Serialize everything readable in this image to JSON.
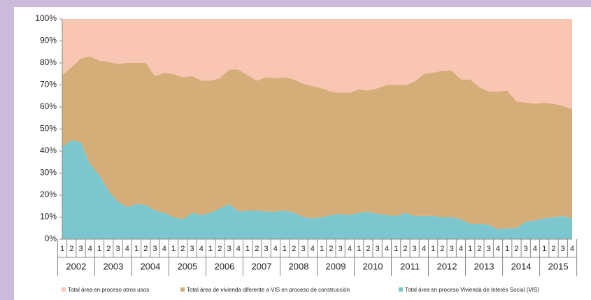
{
  "chart_data": {
    "type": "stacked_area",
    "categories": [
      "1",
      "2",
      "3",
      "4",
      "1",
      "2",
      "3",
      "4",
      "1",
      "2",
      "3",
      "4",
      "1",
      "2",
      "3",
      "4",
      "1",
      "2",
      "3",
      "4",
      "1",
      "2",
      "3",
      "4",
      "1",
      "2",
      "3",
      "4",
      "1",
      "2",
      "3",
      "4",
      "1",
      "2",
      "3",
      "4",
      "1",
      "2",
      "3",
      "4",
      "1",
      "2",
      "3",
      "4",
      "1",
      "2",
      "3",
      "4",
      "1",
      "2",
      "3",
      "4",
      "1",
      "2",
      "3",
      "4"
    ],
    "years": [
      "2002",
      "2003",
      "2004",
      "2005",
      "2006",
      "2007",
      "2008",
      "2009",
      "2010",
      "2011",
      "2012",
      "2013",
      "2014",
      "2015"
    ],
    "series": [
      {
        "name": "Total área en proceso otros usos",
        "color": "#f8c6b3",
        "values": [
          25.5,
          22,
          18,
          17,
          19,
          19.5,
          20.5,
          20,
          20,
          20,
          26,
          24.5,
          25,
          26.5,
          26,
          28,
          28,
          27,
          23,
          23,
          25.5,
          28,
          26.5,
          27,
          26.5,
          27.5,
          29.5,
          30.5,
          31.5,
          33,
          33.5,
          33.5,
          32,
          32.5,
          31.5,
          30,
          30,
          30,
          28.5,
          25,
          24.5,
          23.5,
          23.5,
          27.5,
          27.5,
          31,
          33,
          33,
          32.5,
          37.5,
          38,
          38.5,
          38,
          38.5,
          39.5,
          41
        ]
      },
      {
        "name": "Total área de vivienda diferente a VIS en proceso de construcción",
        "color": "#d5ad78",
        "values": [
          32.5,
          33,
          38,
          49,
          52,
          58.5,
          62.5,
          65.5,
          64,
          64.5,
          61,
          63.5,
          65,
          64.5,
          62,
          61,
          60,
          59,
          61,
          64.5,
          61.5,
          59,
          61,
          60.5,
          60.5,
          60.5,
          60.5,
          60,
          58.5,
          56,
          55,
          55.5,
          56,
          55,
          57,
          59,
          59.5,
          58,
          61,
          64.5,
          65,
          66.5,
          66.5,
          63.5,
          65.5,
          62,
          60.5,
          62.5,
          62.5,
          57.5,
          54,
          53,
          52.5,
          51.5,
          50,
          49.5
        ]
      },
      {
        "name": "Total área en proceso Vivienda de Interés Social (VIS)",
        "color": "#7cc7cd",
        "values": [
          42,
          45,
          44,
          34,
          29,
          22,
          17,
          14.5,
          16,
          15.5,
          13,
          12,
          10,
          9,
          12,
          11,
          12,
          14,
          16,
          12.5,
          13,
          13,
          12.5,
          12.5,
          13,
          12,
          10,
          9.5,
          10,
          11,
          11.5,
          11,
          12,
          12.5,
          11.5,
          11,
          10.5,
          12,
          10.5,
          10.5,
          10.5,
          10,
          10,
          9,
          7,
          7,
          6.5,
          4.5,
          5,
          5,
          8,
          8.5,
          9.5,
          10,
          10.5,
          9.5
        ]
      }
    ],
    "ylim": [
      0,
      100
    ],
    "yticks": [
      {
        "value": 0,
        "label": "0%"
      },
      {
        "value": 10,
        "label": "10%"
      },
      {
        "value": 20,
        "label": "20%"
      },
      {
        "value": 30,
        "label": "30%"
      },
      {
        "value": 40,
        "label": "40%"
      },
      {
        "value": 50,
        "label": "50%"
      },
      {
        "value": 60,
        "label": "60%"
      },
      {
        "value": 70,
        "label": "70%"
      },
      {
        "value": 80,
        "label": "80%"
      },
      {
        "value": 90,
        "label": "90%"
      },
      {
        "value": 100,
        "label": "100%"
      }
    ]
  }
}
